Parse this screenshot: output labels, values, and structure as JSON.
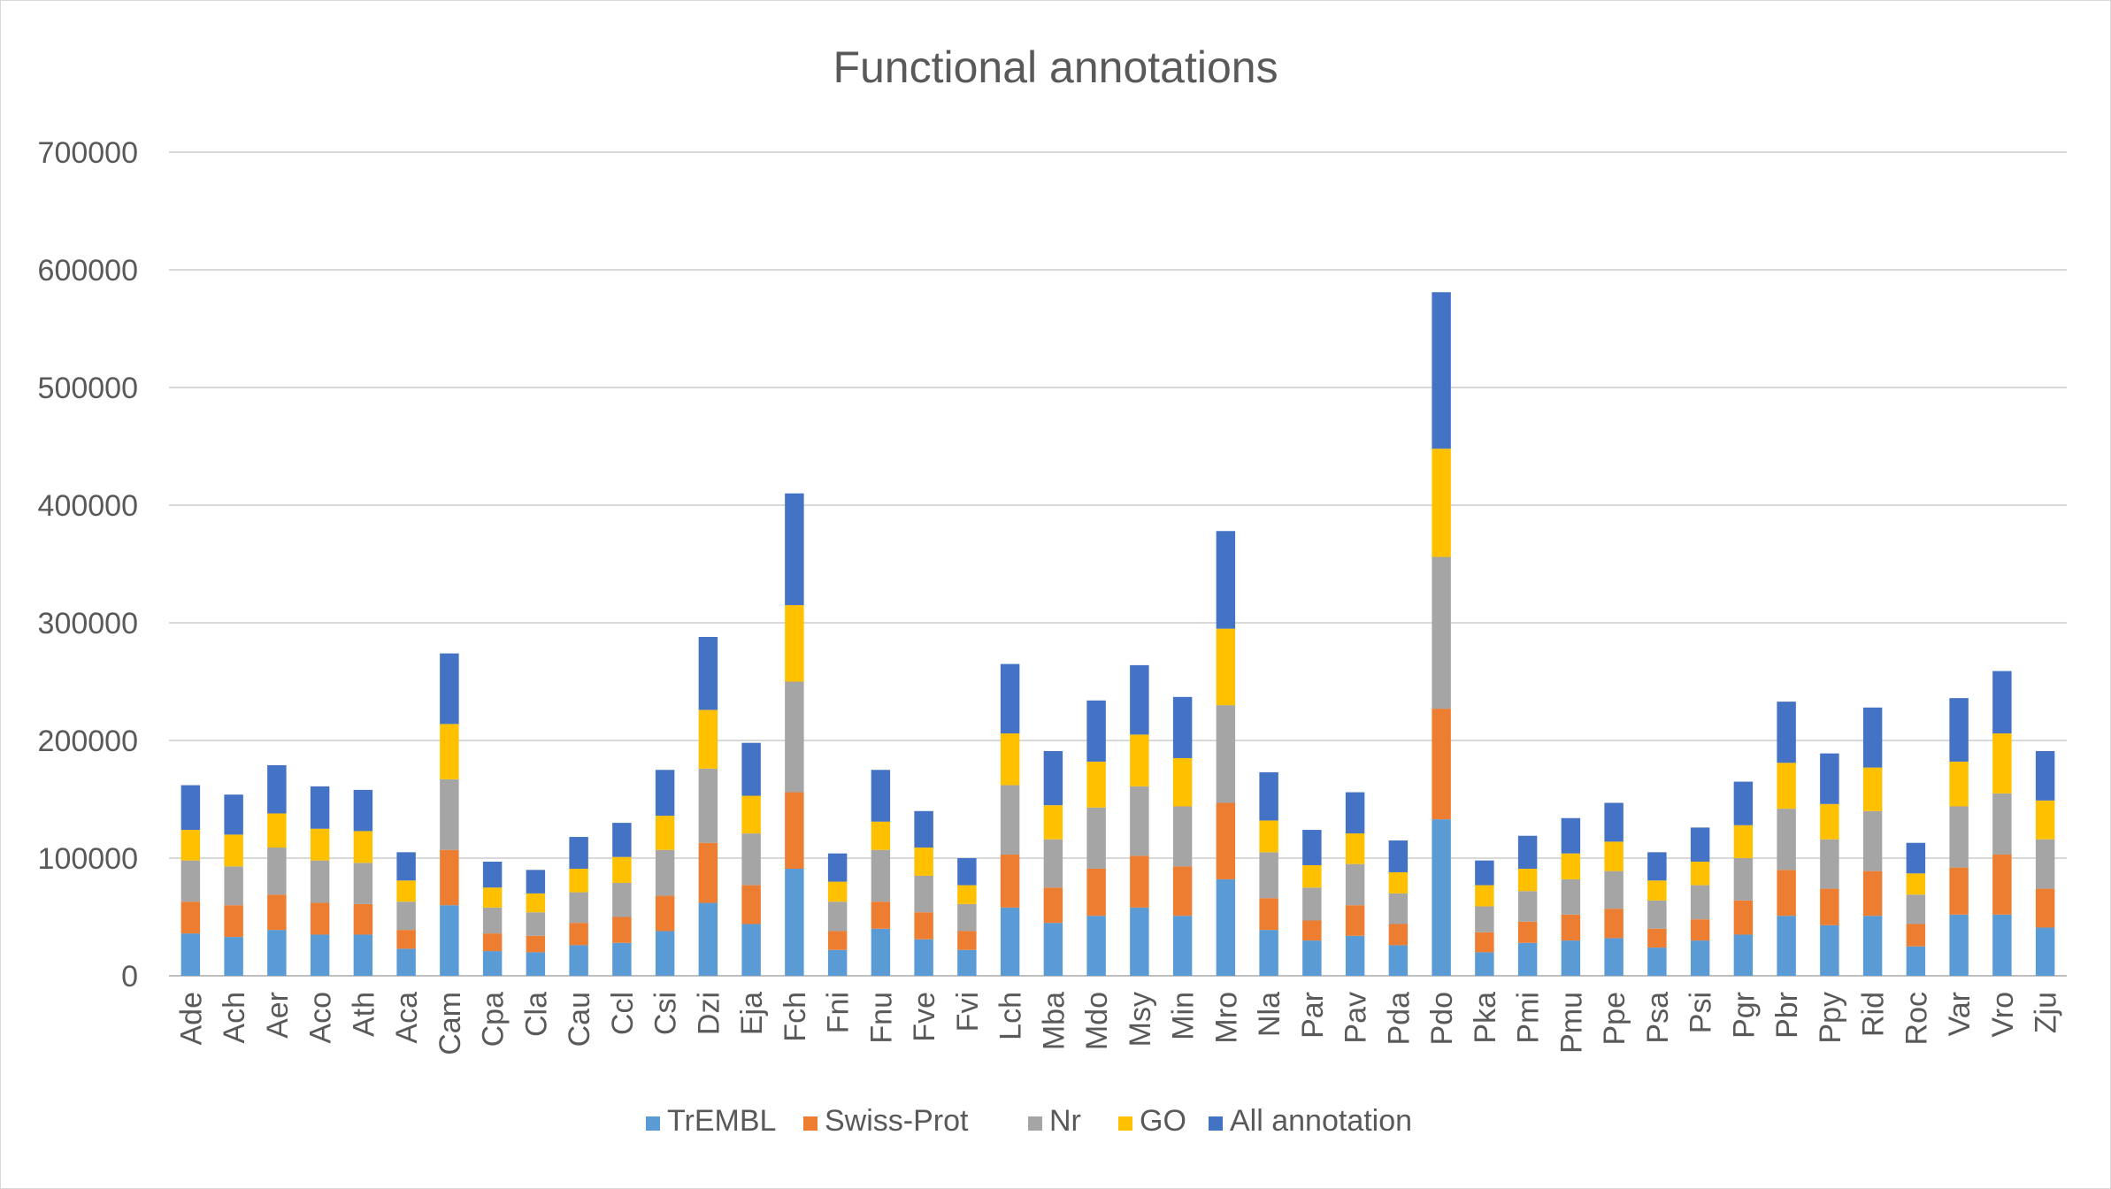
{
  "chart_data": {
    "type": "bar",
    "stacked": true,
    "title": "Functional annotations",
    "xlabel": "",
    "ylabel": "",
    "ylim": [
      0,
      700000
    ],
    "yticks": [
      0,
      100000,
      200000,
      300000,
      400000,
      500000,
      600000,
      700000
    ],
    "grid": true,
    "legend_position": "bottom",
    "categories": [
      "Ade",
      "Ach",
      "Aer",
      "Aco",
      "Ath",
      "Aca",
      "Cam",
      "Cpa",
      "Cla",
      "Cau",
      "Ccl",
      "Csi",
      "Dzi",
      "Eja",
      "Fch",
      "Fni",
      "Fnu",
      "Fve",
      "Fvi",
      "Lch",
      "Mba",
      "Mdo",
      "Msy",
      "Min",
      "Mro",
      "Nla",
      "Par",
      "Pav",
      "Pda",
      "Pdo",
      "Pka",
      "Pmi",
      "Pmu",
      "Ppe",
      "Psa",
      "Psi",
      "Pgr",
      "Pbr",
      "Ppy",
      "Rid",
      "Roc",
      "Var",
      "Vro",
      "Zju"
    ],
    "series": [
      {
        "name": "TrEMBL",
        "color": "#5B9BD5",
        "values": [
          36000,
          33000,
          39000,
          35000,
          35000,
          23000,
          60000,
          21000,
          20000,
          26000,
          28000,
          38000,
          62000,
          44000,
          91000,
          22000,
          40000,
          31000,
          22000,
          58000,
          45000,
          51000,
          58000,
          51000,
          82000,
          39000,
          30000,
          34000,
          26000,
          133000,
          20000,
          28000,
          30000,
          32000,
          24000,
          30000,
          35000,
          51000,
          43000,
          51000,
          25000,
          52000,
          52000,
          41000
        ]
      },
      {
        "name": "Swiss-Prot",
        "color": "#ED7D31",
        "values": [
          27000,
          27000,
          30000,
          27000,
          26000,
          16000,
          47000,
          15000,
          14000,
          19000,
          22000,
          30000,
          51000,
          33000,
          65000,
          16000,
          23000,
          23000,
          16000,
          45000,
          30000,
          40000,
          44000,
          42000,
          65000,
          27000,
          17000,
          26000,
          18000,
          94000,
          17000,
          18000,
          22000,
          25000,
          16000,
          18000,
          29000,
          39000,
          31000,
          38000,
          19000,
          40000,
          51000,
          33000
        ]
      },
      {
        "name": "Nr",
        "color": "#A5A5A5",
        "values": [
          35000,
          33000,
          40000,
          36000,
          35000,
          24000,
          60000,
          22000,
          20000,
          26000,
          29000,
          39000,
          63000,
          44000,
          94000,
          25000,
          44000,
          31000,
          23000,
          59000,
          41000,
          52000,
          59000,
          51000,
          83000,
          39000,
          28000,
          35000,
          26000,
          129000,
          22000,
          26000,
          30000,
          32000,
          24000,
          29000,
          36000,
          52000,
          42000,
          51000,
          25000,
          52000,
          52000,
          42000
        ]
      },
      {
        "name": "GO",
        "color": "#FFC000",
        "values": [
          26000,
          27000,
          29000,
          27000,
          27000,
          18000,
          47000,
          17000,
          16000,
          20000,
          22000,
          29000,
          50000,
          32000,
          65000,
          17000,
          24000,
          24000,
          16000,
          44000,
          29000,
          39000,
          44000,
          41000,
          65000,
          27000,
          19000,
          26000,
          18000,
          92000,
          18000,
          19000,
          22000,
          25000,
          17000,
          20000,
          28000,
          39000,
          30000,
          37000,
          18000,
          38000,
          51000,
          33000
        ]
      },
      {
        "name": "All annotation",
        "color": "#4472C4",
        "values": [
          38000,
          34000,
          41000,
          36000,
          35000,
          24000,
          60000,
          22000,
          20000,
          27000,
          29000,
          39000,
          62000,
          45000,
          95000,
          24000,
          44000,
          31000,
          23000,
          59000,
          46000,
          52000,
          59000,
          52000,
          83000,
          41000,
          30000,
          35000,
          27000,
          133000,
          21000,
          28000,
          30000,
          33000,
          24000,
          29000,
          37000,
          52000,
          43000,
          51000,
          26000,
          54000,
          53000,
          42000
        ]
      }
    ]
  }
}
